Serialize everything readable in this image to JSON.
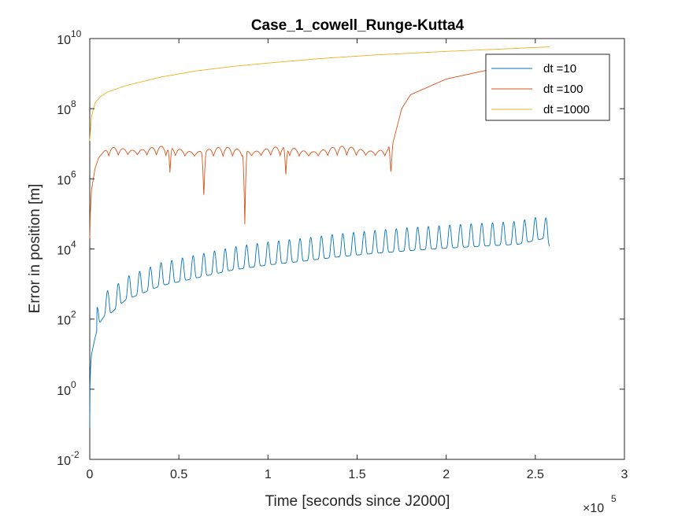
{
  "chart_data": {
    "type": "line",
    "title": "Case_1_cowell_Runge-Kutta4",
    "xlabel": "Time [seconds since J2000]",
    "ylabel": "Error in position [m]",
    "x_exponent_label": "×10",
    "x_exponent": "5",
    "xlim": [
      0,
      300000
    ],
    "ylim": [
      0.01,
      10000000000
    ],
    "yscale": "log",
    "grid": false,
    "legend_position": "top-right",
    "x_ticks": [
      0,
      50000,
      100000,
      150000,
      200000,
      250000,
      300000
    ],
    "x_tick_labels": [
      "0",
      "0.5",
      "1",
      "1.5",
      "2",
      "2.5",
      "3"
    ],
    "y_ticks": [
      0.01,
      1,
      100,
      10000,
      1000000,
      100000000,
      10000000000
    ],
    "y_tick_bases": [
      "10",
      "10",
      "10",
      "10",
      "10",
      "10",
      "10"
    ],
    "y_tick_exponents": [
      "-2",
      "0",
      "2",
      "4",
      "6",
      "8",
      "10"
    ],
    "series": [
      {
        "name": "dt =10",
        "color": "#0072BD",
        "x": [
          0,
          100,
          500,
          1000,
          3000,
          5000,
          7000,
          9000,
          12000,
          20000,
          40000,
          60000,
          80000,
          100000,
          120000,
          140000,
          160000,
          180000,
          200000,
          220000,
          240000,
          255000,
          258000
        ],
        "y": [
          0.08,
          1,
          5,
          10,
          30,
          70,
          100,
          140,
          150,
          350,
          900,
          1500,
          2500,
          3500,
          4500,
          6000,
          7500,
          9000,
          10500,
          12000,
          13500,
          20000,
          12000
        ],
        "oscillation": {
          "period": 6000,
          "amplitude_factor": 4.5
        }
      },
      {
        "name": "dt =100",
        "color": "#D95319",
        "x": [
          0,
          300,
          1000,
          3000,
          5000,
          10000,
          20000,
          40000,
          60000,
          80000,
          100000,
          120000,
          140000,
          160000,
          168000,
          169000,
          170000,
          175000,
          180000,
          200000,
          230000,
          258000
        ],
        "y": [
          20000,
          100000,
          500000,
          2000000,
          4000000,
          8000000,
          9000000,
          8500000,
          8000000,
          8000000,
          8500000,
          8000000,
          8500000,
          8500000,
          8000000,
          1500000,
          10000000,
          100000000,
          250000000,
          700000000,
          1500000000,
          3000000000
        ],
        "dips": [
          {
            "x": 64000,
            "y": 300000
          },
          {
            "x": 87000,
            "y": 50000
          },
          {
            "x": 45000,
            "y": 1500000
          },
          {
            "x": 110000,
            "y": 1200000
          }
        ]
      },
      {
        "name": "dt =1000",
        "color": "#EDB120",
        "x": [
          0,
          1000,
          3000,
          6000,
          10000,
          20000,
          40000,
          60000,
          80000,
          100000,
          130000,
          160000,
          200000,
          230000,
          258000
        ],
        "y": [
          12000000,
          60000000,
          150000000,
          220000000,
          300000000,
          450000000,
          800000000,
          1200000000,
          1600000000,
          2000000000,
          2700000000,
          3400000000,
          4300000000,
          5000000000,
          5800000000
        ]
      }
    ]
  }
}
